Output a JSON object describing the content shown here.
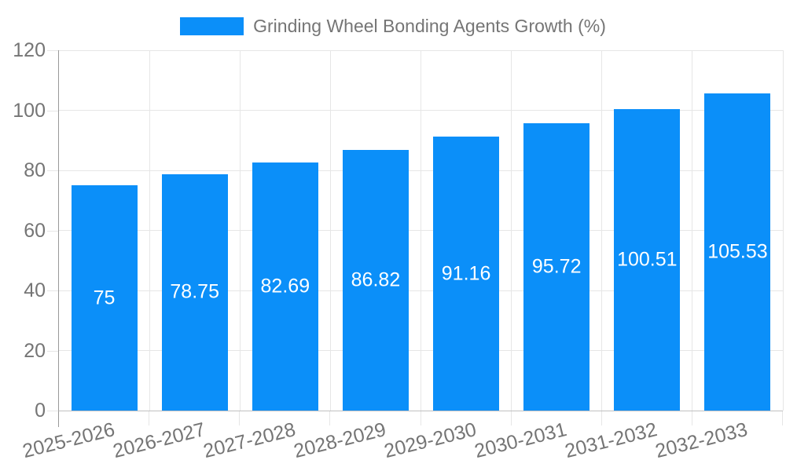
{
  "chart_data": {
    "type": "bar",
    "title": "Grinding Wheel Bonding Agents Growth (%)",
    "categories": [
      "2025-2026",
      "2026-2027",
      "2027-2028",
      "2028-2029",
      "2029-2030",
      "2030-2031",
      "2031-2032",
      "2032-2033"
    ],
    "values": [
      75,
      78.75,
      82.69,
      86.82,
      91.16,
      95.72,
      100.51,
      105.53
    ],
    "xlabel": "",
    "ylabel": "",
    "ylim": [
      0,
      120
    ],
    "yticks": [
      0,
      20,
      40,
      60,
      80,
      100,
      120
    ],
    "grid": true,
    "legend_position": "top-center",
    "xtick_rotation_deg": -14,
    "value_labels_inside_bars": true,
    "colors": {
      "bar": "#0b8ff9",
      "grid": "#e6e6e6",
      "baseline": "#c0c0c0",
      "axis_line": "#999999",
      "text": "#757575",
      "value_label": "#ffffff",
      "background": "#ffffff"
    }
  }
}
